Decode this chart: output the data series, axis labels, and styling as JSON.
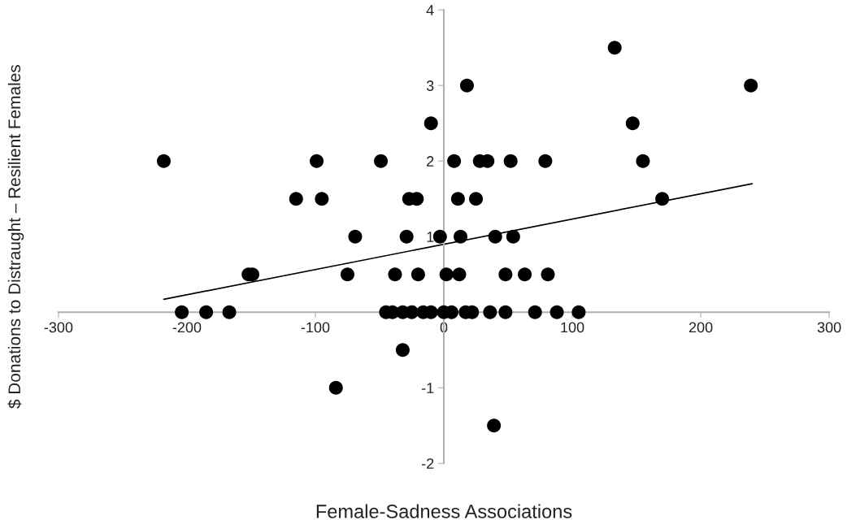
{
  "chart_data": {
    "type": "scatter",
    "xlabel": "Female-Sadness Associations",
    "ylabel": "$ Donations to Distraught – Resilient Females",
    "xlim": [
      -300,
      300
    ],
    "ylim": [
      -2,
      4
    ],
    "xticks": [
      -300,
      -200,
      -100,
      0,
      100,
      200,
      300
    ],
    "yticks": [
      -2,
      -1,
      1,
      2,
      3,
      4
    ],
    "grid": false,
    "series": [
      {
        "marker": "circle",
        "color": "#000000",
        "x": [
          133,
          18,
          239,
          -10,
          147,
          -218,
          -99,
          -49,
          8,
          28,
          34,
          52,
          79,
          155,
          -115,
          -95,
          -27,
          -21,
          11,
          25,
          170,
          -69,
          -29,
          -3,
          13,
          40,
          54,
          -152,
          -149,
          -75,
          -38,
          -20,
          2,
          12,
          48,
          63,
          81,
          -204,
          -185,
          -167,
          -45,
          -40,
          -32,
          -25,
          -16,
          -10,
          0,
          6,
          17,
          22,
          36,
          48,
          71,
          88,
          105,
          -32,
          -84,
          39
        ],
        "values": [
          3.5,
          3,
          3,
          2.5,
          2.5,
          2,
          2,
          2,
          2,
          2,
          2,
          2,
          2,
          2,
          1.5,
          1.5,
          1.5,
          1.5,
          1.5,
          1.5,
          1.5,
          1,
          1,
          1,
          1,
          1,
          1,
          0.5,
          0.5,
          0.5,
          0.5,
          0.5,
          0.5,
          0.5,
          0.5,
          0.5,
          0.5,
          0,
          0,
          0,
          0,
          0,
          0,
          0,
          0,
          0,
          0,
          0,
          0,
          0,
          0,
          0,
          0,
          0,
          0,
          -0.5,
          -1,
          -1.5
        ]
      },
      {
        "type": "line",
        "marker": "none",
        "color": "#000000",
        "x": [
          -218,
          240
        ],
        "values": [
          0.17,
          1.7
        ]
      }
    ]
  }
}
